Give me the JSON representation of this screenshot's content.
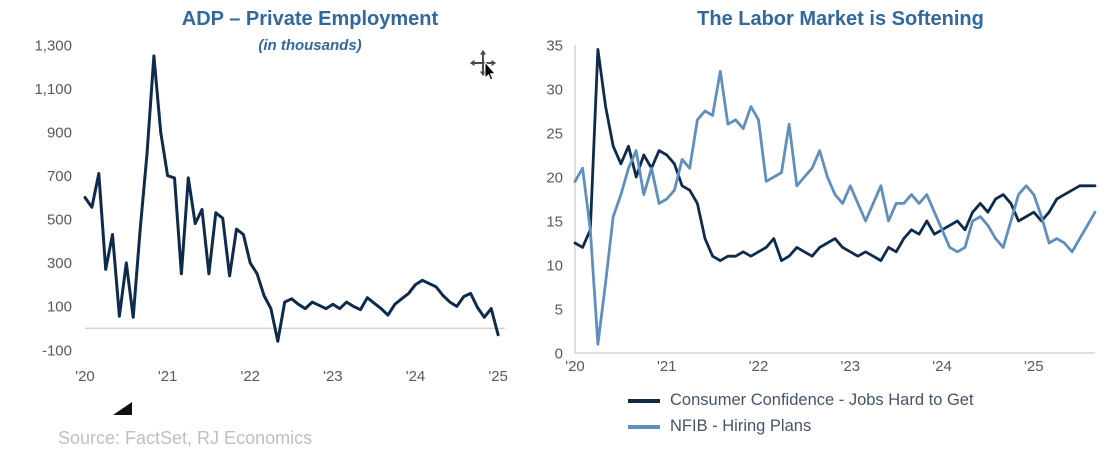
{
  "source_note": "Source: FactSet, RJ Economics",
  "colors": {
    "title": "#31699f",
    "navy": "#0f2b4c",
    "light_blue": "#5f8fbf",
    "axis_text": "#595959",
    "axis_line": "#cccccc",
    "legend_text": "#44546a",
    "source_text": "#bfbfbf"
  },
  "chart_data": [
    {
      "type": "line",
      "title": "ADP – Private Employment",
      "subtitle": "(in thousands)",
      "xlabel": "",
      "ylabel": "",
      "ylim": [
        -100,
        1300
      ],
      "yticks": [
        -100,
        100,
        300,
        500,
        700,
        900,
        1100,
        1300
      ],
      "x_tick_labels": [
        "'20",
        "'21",
        "'22",
        "'23",
        "'24",
        "'25"
      ],
      "grid": false,
      "legend_position": "none",
      "series": [
        {
          "name": "ADP Private Employment (thousands)",
          "color_key": "navy",
          "values": [
            600,
            555,
            710,
            270,
            430,
            55,
            300,
            50,
            450,
            800,
            1250,
            900,
            700,
            690,
            250,
            690,
            480,
            545,
            250,
            530,
            505,
            240,
            455,
            430,
            300,
            250,
            150,
            90,
            -60,
            120,
            135,
            110,
            90,
            120,
            105,
            90,
            110,
            90,
            120,
            100,
            85,
            140,
            115,
            90,
            60,
            110,
            135,
            160,
            200,
            220,
            205,
            190,
            150,
            120,
            100,
            145,
            160,
            95,
            50,
            90,
            -30
          ]
        }
      ]
    },
    {
      "type": "line",
      "title": "The Labor Market is Softening",
      "subtitle": "",
      "xlabel": "",
      "ylabel": "",
      "ylim": [
        0,
        35
      ],
      "yticks": [
        0,
        5,
        10,
        15,
        20,
        25,
        30,
        35
      ],
      "x_tick_labels": [
        "'20",
        "'21",
        "'22",
        "'23",
        "'24",
        "'25"
      ],
      "grid": false,
      "legend_position": "bottom",
      "series": [
        {
          "name": "Consumer Confidence - Jobs Hard to Get",
          "color_key": "navy",
          "values": [
            12.5,
            12,
            14,
            34.5,
            28,
            23.5,
            21.5,
            23.5,
            20,
            22.5,
            21,
            23,
            22.5,
            21.5,
            19,
            18.5,
            17,
            13,
            11,
            10.5,
            11,
            11,
            11.5,
            11,
            11.5,
            12,
            13,
            10.5,
            11,
            12,
            11.5,
            11,
            12,
            12.5,
            13,
            12,
            11.5,
            11,
            11.5,
            11,
            10.5,
            12,
            11.5,
            13,
            14,
            13.5,
            15,
            13.5,
            14,
            14.5,
            15,
            14,
            16,
            17,
            16,
            17.5,
            18,
            17,
            15,
            15.5,
            16,
            15,
            16,
            17.5,
            18,
            18.5,
            19,
            19,
            19
          ]
        },
        {
          "name": "NFIB - Hiring Plans",
          "color_key": "light_blue",
          "values": [
            19.5,
            21,
            14,
            1,
            8,
            15.5,
            18,
            21,
            23,
            18,
            21,
            17,
            17.5,
            18.5,
            22,
            21,
            26.5,
            27.5,
            27,
            32,
            26,
            26.5,
            25.5,
            28,
            26.5,
            19.5,
            20,
            20.5,
            26,
            19,
            20,
            21,
            23,
            20,
            18,
            17,
            19,
            17,
            15,
            17,
            19,
            15,
            17,
            17,
            18,
            17,
            18,
            16,
            14,
            12,
            11.5,
            12,
            15,
            15.5,
            14.5,
            13,
            12,
            15,
            18,
            19,
            18,
            15.5,
            12.5,
            13,
            12.5,
            11.5,
            13,
            14.5,
            16
          ]
        }
      ]
    }
  ]
}
